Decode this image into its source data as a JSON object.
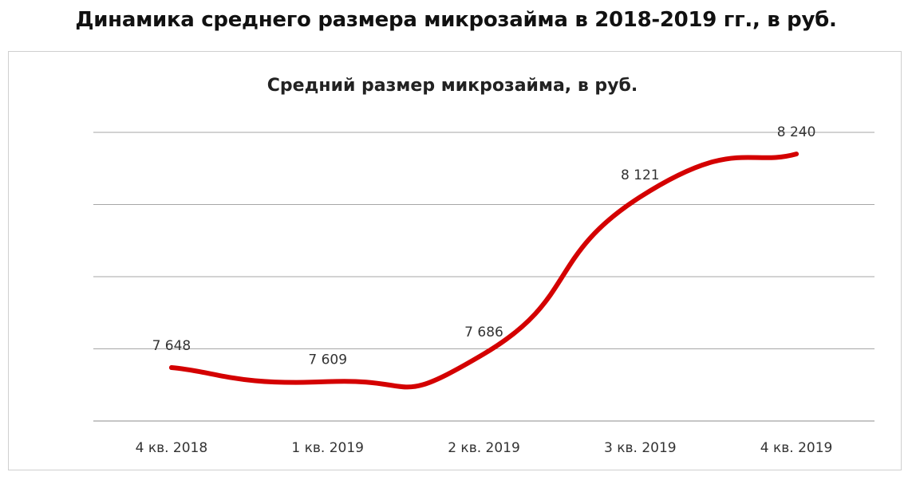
{
  "page_title": "Динамика среднего размера микрозайма в 2018-2019 гг., в руб.",
  "chart_data": {
    "type": "line",
    "title": "Средний размер микрозайма, в руб.",
    "categories": [
      "4 кв. 2018",
      "1 кв. 2019",
      "2 кв. 2019",
      "3 кв. 2019",
      "4 кв. 2019"
    ],
    "values": [
      7648,
      7609,
      7686,
      8121,
      8240
    ],
    "value_labels": [
      "7 648",
      "7 609",
      "7 686",
      "8 121",
      "8 240"
    ],
    "ylim": [
      7500,
      8300
    ],
    "grid": true,
    "legend": "none",
    "line_color": "#d40000"
  }
}
